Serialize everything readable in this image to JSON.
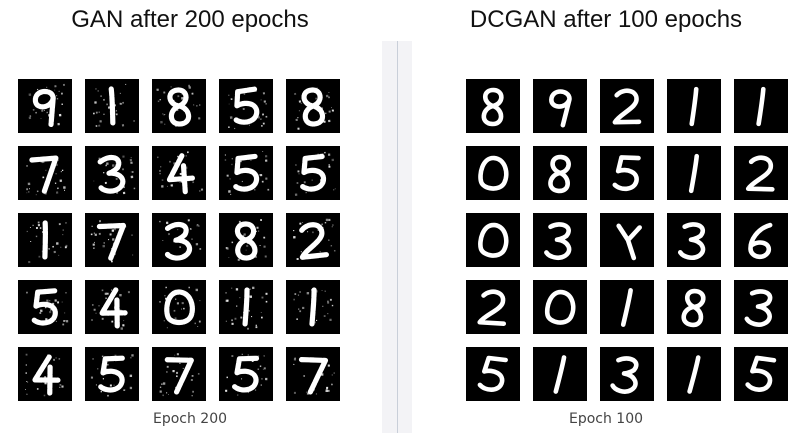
{
  "panels": [
    {
      "title": "GAN after 200 epochs",
      "caption": "Epoch 200",
      "style": "noisy",
      "digits": [
        "9",
        "1",
        "8",
        "5",
        "8",
        "7",
        "3",
        "4",
        "5",
        "5",
        "1",
        "7",
        "3",
        "8",
        "2",
        "5",
        "4",
        "0",
        "1",
        "1",
        "4",
        "5",
        "7",
        "5",
        "7"
      ]
    },
    {
      "title": "DCGAN after 100 epochs",
      "caption": "Epoch 100",
      "style": "smooth",
      "digits": [
        "8",
        "9",
        "2",
        "1",
        "1",
        "0",
        "8",
        "5",
        "1",
        "2",
        "0",
        "3",
        "Y",
        "3",
        "6",
        "2",
        "0",
        "1",
        "8",
        "3",
        "5",
        "1",
        "3",
        "1",
        "5"
      ]
    }
  ],
  "colors": {
    "tile_background": "#000000",
    "digit_stroke": "#ffffff",
    "divider_bg": "#f3f3f6",
    "divider_line": "#c9cfd9"
  }
}
